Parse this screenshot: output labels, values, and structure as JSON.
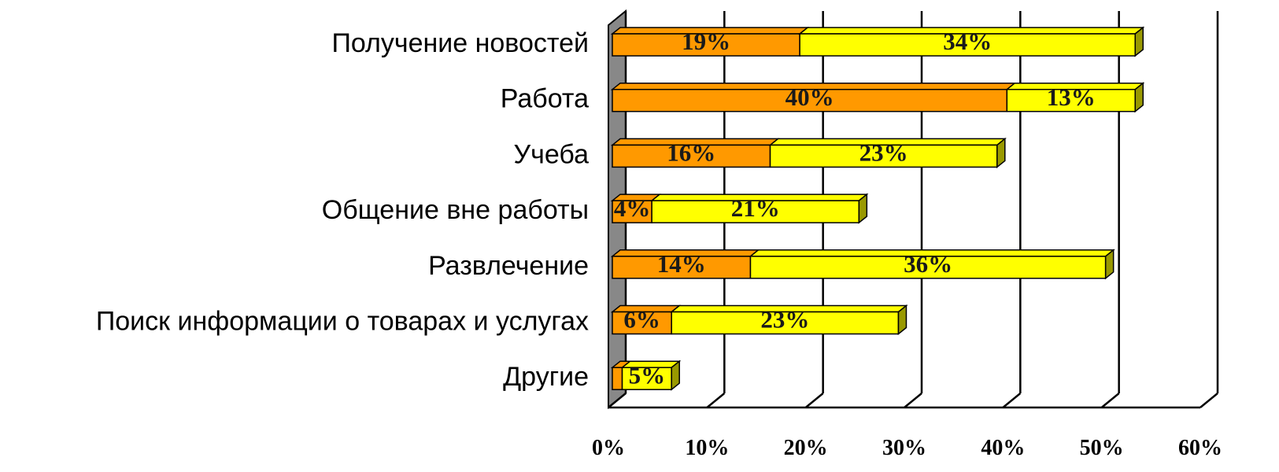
{
  "chart_data": {
    "type": "bar3d_stacked_horizontal",
    "categories": [
      "Получение новостей",
      "Работа",
      "Учеба",
      "Общение вне работы",
      "Развлечение",
      "Поиск информации о товарах и услугах",
      "Другие"
    ],
    "series": [
      {
        "color": "#ff9900",
        "values": [
          19,
          40,
          16,
          4,
          14,
          6,
          1
        ],
        "value_labels": [
          "19%",
          "40%",
          "16%",
          "4%",
          "14%",
          "6%",
          null
        ]
      },
      {
        "color": "#ffff00",
        "values": [
          34,
          13,
          23,
          21,
          36,
          23,
          5
        ],
        "value_labels": [
          "34%",
          "13%",
          "23%",
          "21%",
          "36%",
          "23%",
          "5%"
        ]
      }
    ],
    "xlim": [
      0,
      60
    ],
    "xticks": [
      {
        "value": 0,
        "label": "0%"
      },
      {
        "value": 10,
        "label": "10%"
      },
      {
        "value": 20,
        "label": "20%"
      },
      {
        "value": 30,
        "label": "30%"
      },
      {
        "value": 40,
        "label": "40%"
      },
      {
        "value": 50,
        "label": "50%"
      },
      {
        "value": 60,
        "label": "60%"
      }
    ],
    "grid": true
  }
}
